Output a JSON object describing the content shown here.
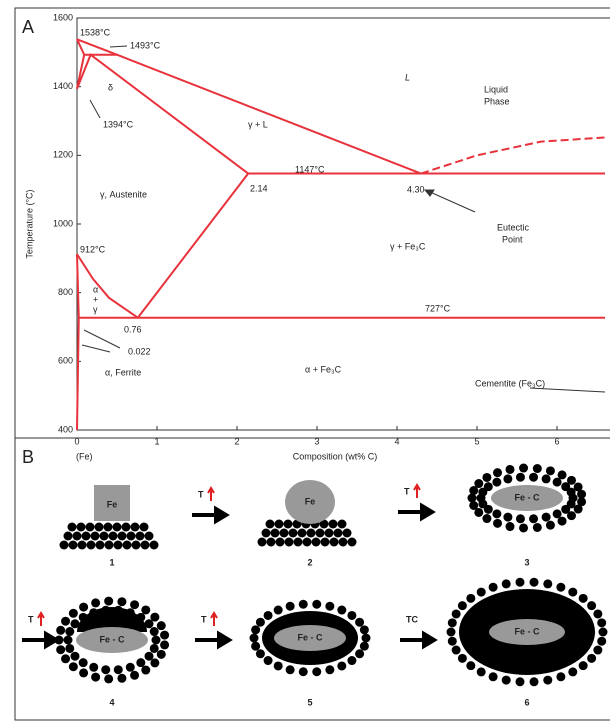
{
  "chart_data": {
    "type": "line",
    "panel_label": "A",
    "xlabel": "Composition (wt% C)",
    "ylabel": "Temperature (°C)",
    "xlim": [
      0,
      6.6
    ],
    "ylim": [
      400,
      1600
    ],
    "xticks": [
      0,
      1,
      2,
      3,
      4,
      5,
      6
    ],
    "yticks": [
      400,
      600,
      800,
      1000,
      1200,
      1400,
      1600
    ],
    "color": "#e8323c",
    "series": [
      {
        "x": [
          0,
          0.5,
          4.3
        ],
        "values": [
          1538,
          1493,
          1147
        ]
      },
      {
        "x": [
          0,
          0.09,
          0
        ],
        "values": [
          1538,
          1493,
          1394
        ]
      },
      {
        "x": [
          0.09,
          0.5
        ],
        "values": [
          1493,
          1493
        ]
      },
      {
        "x": [
          0,
          0.17,
          2.14
        ],
        "values": [
          1394,
          1493,
          1147
        ]
      },
      {
        "x": [
          2.14,
          6.6
        ],
        "values": [
          1147,
          1147
        ]
      },
      {
        "x": [
          2.14,
          0.76
        ],
        "values": [
          1147,
          727
        ]
      },
      {
        "x": [
          0,
          0.2,
          0.4,
          0.76
        ],
        "values": [
          912,
          840,
          785,
          727
        ]
      },
      {
        "x": [
          0,
          0.022,
          0
        ],
        "values": [
          912,
          727,
          400
        ]
      },
      {
        "x": [
          0.022,
          6.6
        ],
        "values": [
          727,
          727
        ]
      },
      {
        "x": [
          4.3,
          5,
          5.8,
          6.6
        ],
        "values": [
          1147,
          1200,
          1240,
          1252
        ],
        "linestyle": "dashed"
      }
    ],
    "annotations": [
      "1538°C",
      "1493°C",
      "δ",
      "1394°C",
      "L",
      "Liquid",
      "Phase",
      "γ + L",
      "1147°C",
      "2.14",
      "4.30",
      "Eutectic",
      "Point",
      "γ, Austenite",
      "912°C",
      "γ + Fe₃C",
      "α",
      "+",
      "γ",
      "727°C",
      "0.76",
      "0.022",
      "α, Ferrite",
      "α + Fe₃C",
      "Cementite (Fe₃C)",
      "(Fe)"
    ]
  },
  "panel_b": {
    "label": "B",
    "steps": [
      {
        "number": "1",
        "core": "Fe"
      },
      {
        "number": "2",
        "core": "Fe"
      },
      {
        "number": "3",
        "core": "Fe - C"
      },
      {
        "number": "4",
        "core": "Fe - C"
      },
      {
        "number": "5",
        "core": "Fe - C"
      },
      {
        "number": "6",
        "core": "Fe - C"
      }
    ],
    "arrows": [
      "T",
      "T",
      "T",
      "T",
      "TC"
    ]
  }
}
